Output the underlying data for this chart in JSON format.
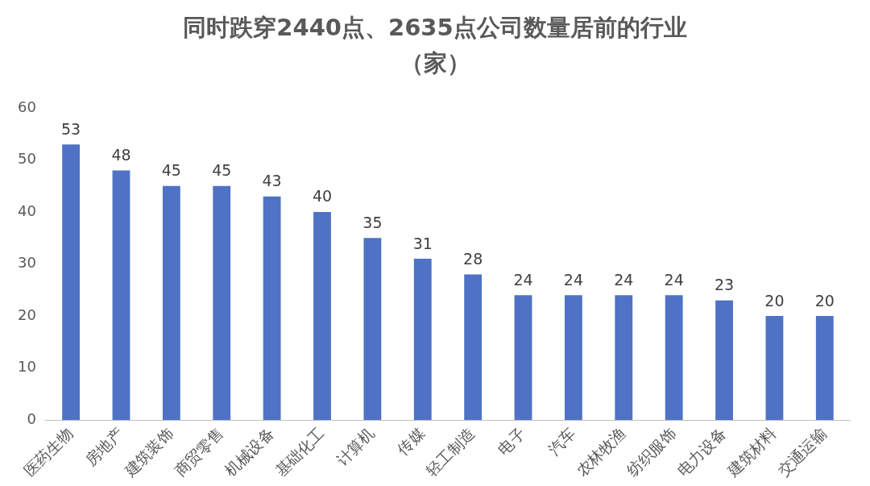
{
  "chart_data": {
    "type": "bar",
    "title": "同时跌穿2440点、2635点公司数量居前的行业（家）",
    "categories": [
      "医药生物",
      "房地产",
      "建筑装饰",
      "商贸零售",
      "机械设备",
      "基础化工",
      "计算机",
      "传媒",
      "轻工制造",
      "电子",
      "汽车",
      "农林牧渔",
      "纺织服饰",
      "电力设备",
      "建筑材料",
      "交通运输"
    ],
    "values": [
      53,
      48,
      45,
      45,
      43,
      40,
      35,
      31,
      28,
      24,
      24,
      24,
      24,
      23,
      20,
      20
    ],
    "color": "#4f72c6",
    "ylim": [
      0,
      60
    ],
    "yticks": [
      0,
      10,
      20,
      30,
      40,
      50,
      60
    ],
    "grid": false,
    "data_labels": true
  }
}
